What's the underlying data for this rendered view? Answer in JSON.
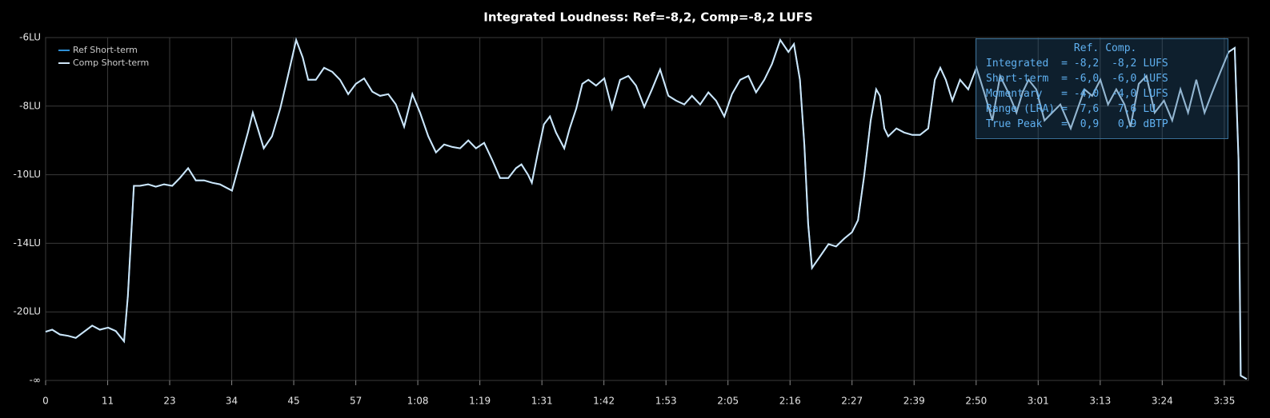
{
  "chart_data": {
    "type": "line",
    "title": "Integrated Loudness: Ref=-8,2, Comp=-8,2 LUFS",
    "scale": "piecewise",
    "legend": "top-left",
    "grid": true,
    "xlim": [
      0,
      219.4
    ],
    "xticks": [
      0,
      {
        "value": 11.32,
        "label": "11"
      },
      {
        "value": 22.63,
        "label": "23"
      },
      {
        "value": 33.95,
        "label": "34"
      },
      {
        "value": 45.26,
        "label": "45"
      },
      {
        "value": 56.58,
        "label": "57"
      },
      {
        "value": 67.89,
        "label": "1:08"
      },
      {
        "value": 79.21,
        "label": "1:19"
      },
      {
        "value": 90.53,
        "label": "1:31"
      },
      {
        "value": 101.84,
        "label": "1:42"
      },
      {
        "value": 113.16,
        "label": "1:53"
      },
      {
        "value": 124.47,
        "label": "2:05"
      },
      {
        "value": 135.79,
        "label": "2:16"
      },
      {
        "value": 147.1,
        "label": "2:27"
      },
      {
        "value": 158.42,
        "label": "2:39"
      },
      {
        "value": 169.74,
        "label": "2:50"
      },
      {
        "value": 181.05,
        "label": "3:01"
      },
      {
        "value": 192.37,
        "label": "3:13"
      },
      {
        "value": 203.68,
        "label": "3:24"
      },
      {
        "value": 215,
        "label": "3:35"
      }
    ],
    "ylim": [
      -30,
      -6
    ],
    "yticks": [
      {
        "value": -6,
        "label": "-6LU"
      },
      {
        "value": -8,
        "label": "-8LU"
      },
      {
        "value": -10,
        "label": "-10LU"
      },
      {
        "value": -14,
        "label": "-14LU"
      },
      {
        "value": -20,
        "label": "-20LU"
      },
      {
        "value": -30,
        "label": "-∞"
      }
    ],
    "x": [
      0,
      1.2,
      2.6,
      4.1,
      5.5,
      7.0,
      8.5,
      9.9,
      11.4,
      12.8,
      14.3,
      15.0,
      16.1,
      17.2,
      18.7,
      20.1,
      21.6,
      23.1,
      24.5,
      26.0,
      27.4,
      28.9,
      30.4,
      31.8,
      34.0,
      35.5,
      36.9,
      37.8,
      38.7,
      39.8,
      41.3,
      42.8,
      44.2,
      45.7,
      46.9,
      47.9,
      49.3,
      50.8,
      52.3,
      53.7,
      55.2,
      56.6,
      58.1,
      59.6,
      61.0,
      62.5,
      63.9,
      65.4,
      66.9,
      68.3,
      69.8,
      71.2,
      72.7,
      74.2,
      75.6,
      77.1,
      78.5,
      80.0,
      81.5,
      82.9,
      84.4,
      85.8,
      86.8,
      88.0,
      88.7,
      89.8,
      90.9,
      92.0,
      93.1,
      94.6,
      95.6,
      96.8,
      97.9,
      99.0,
      100.4,
      101.9,
      103.3,
      104.8,
      106.3,
      107.7,
      109.2,
      110.6,
      112.1,
      113.6,
      115.0,
      116.5,
      117.9,
      119.4,
      120.9,
      122.3,
      123.8,
      125.2,
      126.7,
      128.2,
      129.6,
      131.1,
      132.5,
      134.0,
      135.5,
      136.5,
      137.6,
      138.4,
      139.1,
      139.8,
      141.3,
      142.8,
      144.2,
      145.7,
      147.1,
      148.2,
      149.3,
      150.5,
      151.5,
      152.2,
      153.0,
      153.7,
      155.2,
      156.6,
      158.1,
      159.5,
      161.0,
      162.2,
      163.2,
      164.2,
      165.4,
      166.8,
      168.3,
      169.8,
      171.2,
      172.7,
      174.1,
      175.6,
      177.1,
      178.2,
      179.3,
      180.7,
      182.2,
      183.6,
      185.1,
      187.0,
      188.0,
      189.5,
      190.9,
      192.4,
      193.8,
      195.3,
      196.8,
      197.9,
      199.4,
      200.8,
      202.3,
      204.0,
      205.5,
      207.0,
      208.4,
      209.9,
      211.4,
      212.8,
      214.3,
      215.8,
      216.9,
      217.6,
      218.0,
      219.1
    ],
    "series": [
      {
        "name": "Ref Short-term",
        "color": "#2e8fd6",
        "values": [
          -22.9,
          -22.6,
          -23.3,
          -23.5,
          -23.8,
          -22.9,
          -22.0,
          -22.6,
          -22.3,
          -22.8,
          -24.3,
          -18.6,
          -10.65,
          -10.65,
          -10.56,
          -10.7,
          -10.56,
          -10.65,
          -10.19,
          -9.81,
          -10.33,
          -10.33,
          -10.47,
          -10.56,
          -10.93,
          -9.58,
          -8.77,
          -8.19,
          -8.65,
          -9.23,
          -8.88,
          -8.07,
          -7.12,
          -6.07,
          -6.58,
          -7.23,
          -7.23,
          -6.88,
          -7.0,
          -7.23,
          -7.65,
          -7.35,
          -7.19,
          -7.58,
          -7.7,
          -7.65,
          -7.95,
          -8.6,
          -7.65,
          -8.19,
          -8.88,
          -9.35,
          -9.12,
          -9.19,
          -9.23,
          -9.0,
          -9.23,
          -9.07,
          -9.58,
          -10.19,
          -10.19,
          -9.81,
          -9.7,
          -10.0,
          -10.47,
          -9.35,
          -8.53,
          -8.3,
          -8.77,
          -9.23,
          -8.65,
          -8.07,
          -7.35,
          -7.23,
          -7.4,
          -7.19,
          -8.07,
          -7.23,
          -7.12,
          -7.4,
          -8.02,
          -7.51,
          -6.93,
          -7.7,
          -7.84,
          -7.95,
          -7.7,
          -7.95,
          -7.6,
          -7.84,
          -8.3,
          -7.65,
          -7.23,
          -7.12,
          -7.6,
          -7.23,
          -6.77,
          -6.07,
          -6.42,
          -6.19,
          -7.23,
          -9.12,
          -12.88,
          -16.16,
          -15.12,
          -14.07,
          -14.28,
          -13.72,
          -13.35,
          -12.65,
          -10.09,
          -8.42,
          -7.51,
          -7.7,
          -8.65,
          -8.88,
          -8.65,
          -8.77,
          -8.84,
          -8.84,
          -8.65,
          -7.23,
          -6.88,
          -7.23,
          -7.84,
          -7.23,
          -7.51,
          -6.88,
          -7.6,
          -8.42,
          -7.12,
          -7.6,
          -8.19,
          -7.6,
          -7.23,
          -7.51,
          -8.42,
          -8.19,
          -7.95,
          -8.65,
          -8.19,
          -7.51,
          -7.7,
          -7.23,
          -7.95,
          -7.51,
          -7.95,
          -8.6,
          -7.35,
          -7.12,
          -8.19,
          -7.84,
          -8.42,
          -7.51,
          -8.19,
          -7.23,
          -8.19,
          -7.6,
          -7.0,
          -6.42,
          -6.3,
          -9.58,
          -29.3,
          -29.8
        ]
      },
      {
        "name": "Comp Short-term",
        "color": "#cfe6f7",
        "values": [
          -22.9,
          -22.6,
          -23.3,
          -23.5,
          -23.8,
          -22.9,
          -22.0,
          -22.6,
          -22.3,
          -22.8,
          -24.3,
          -18.6,
          -10.65,
          -10.65,
          -10.56,
          -10.7,
          -10.56,
          -10.65,
          -10.19,
          -9.81,
          -10.33,
          -10.33,
          -10.47,
          -10.56,
          -10.93,
          -9.58,
          -8.77,
          -8.19,
          -8.65,
          -9.23,
          -8.88,
          -8.07,
          -7.12,
          -6.07,
          -6.58,
          -7.23,
          -7.23,
          -6.88,
          -7.0,
          -7.23,
          -7.65,
          -7.35,
          -7.19,
          -7.58,
          -7.7,
          -7.65,
          -7.95,
          -8.6,
          -7.65,
          -8.19,
          -8.88,
          -9.35,
          -9.12,
          -9.19,
          -9.23,
          -9.0,
          -9.23,
          -9.07,
          -9.58,
          -10.19,
          -10.19,
          -9.81,
          -9.7,
          -10.0,
          -10.47,
          -9.35,
          -8.53,
          -8.3,
          -8.77,
          -9.23,
          -8.65,
          -8.07,
          -7.35,
          -7.23,
          -7.4,
          -7.19,
          -8.07,
          -7.23,
          -7.12,
          -7.4,
          -8.02,
          -7.51,
          -6.93,
          -7.7,
          -7.84,
          -7.95,
          -7.7,
          -7.95,
          -7.6,
          -7.84,
          -8.3,
          -7.65,
          -7.23,
          -7.12,
          -7.6,
          -7.23,
          -6.77,
          -6.07,
          -6.42,
          -6.19,
          -7.23,
          -9.12,
          -12.88,
          -16.16,
          -15.12,
          -14.07,
          -14.28,
          -13.72,
          -13.35,
          -12.65,
          -10.09,
          -8.42,
          -7.51,
          -7.7,
          -8.65,
          -8.88,
          -8.65,
          -8.77,
          -8.84,
          -8.84,
          -8.65,
          -7.23,
          -6.88,
          -7.23,
          -7.84,
          -7.23,
          -7.51,
          -6.88,
          -7.6,
          -8.42,
          -7.12,
          -7.6,
          -8.19,
          -7.6,
          -7.23,
          -7.51,
          -8.42,
          -8.19,
          -7.95,
          -8.65,
          -8.19,
          -7.51,
          -7.7,
          -7.23,
          -7.95,
          -7.51,
          -7.95,
          -8.6,
          -7.35,
          -7.12,
          -8.19,
          -7.84,
          -8.42,
          -7.51,
          -8.19,
          -7.23,
          -8.19,
          -7.6,
          -7.0,
          -6.42,
          -6.3,
          -9.58,
          -29.3,
          -29.8
        ]
      }
    ]
  },
  "info_panel": {
    "header": [
      "Ref.",
      "Comp."
    ],
    "rows": [
      [
        "Integrated",
        "=",
        "-8,2",
        "-8,2",
        "LUFS"
      ],
      [
        "Short-term",
        "=",
        "-6,0",
        "-6,0",
        "LUFS"
      ],
      [
        "Momentary",
        "=",
        "-4,0",
        "-4,0",
        "LUFS"
      ],
      [
        "Range (LRA)",
        "=",
        "7,6",
        "7,6",
        "LU"
      ],
      [
        "True Peak",
        "=",
        "0,9",
        "0,9",
        "dBTP"
      ]
    ]
  }
}
